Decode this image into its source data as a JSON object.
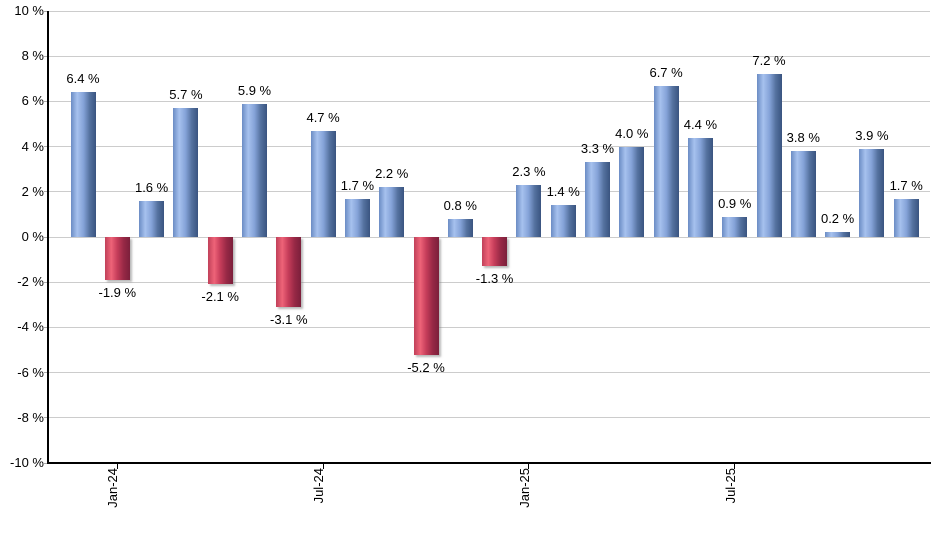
{
  "chart": {
    "background": "#ffffff",
    "grid_color": "#cccccc",
    "axis_color": "#000000",
    "label_color": "#000000",
    "positive_gradient": [
      "#6b8cc4",
      "#a6c1ee",
      "#85a3d8",
      "#54719f",
      "#3a5480"
    ],
    "negative_gradient": [
      "#c04059",
      "#ee6378",
      "#c43c59",
      "#962845",
      "#7c1f3b"
    ]
  },
  "chart_data": {
    "type": "bar",
    "title": "",
    "xlabel": "",
    "ylabel": "",
    "ylim": [
      -10,
      10
    ],
    "grid": "horizontal",
    "legend": "none",
    "value_label_format": "x.x %",
    "y_ticks": [
      {
        "value": 10,
        "label": "10 %"
      },
      {
        "value": 8,
        "label": "8 %"
      },
      {
        "value": 6,
        "label": "6 %"
      },
      {
        "value": 4,
        "label": "4 %"
      },
      {
        "value": 2,
        "label": "2 %"
      },
      {
        "value": 0,
        "label": "0 %"
      },
      {
        "value": -2,
        "label": "-2 %"
      },
      {
        "value": -4,
        "label": "-4 %"
      },
      {
        "value": -6,
        "label": "-6 %"
      },
      {
        "value": -8,
        "label": "-8 %"
      },
      {
        "value": -10,
        "label": "-10 %"
      }
    ],
    "x_ticks": [
      {
        "index": 1,
        "label": "Jan-24"
      },
      {
        "index": 7,
        "label": "Jul-24"
      },
      {
        "index": 13,
        "label": "Jan-25"
      },
      {
        "index": 19,
        "label": "Jul-25"
      }
    ],
    "bars": [
      {
        "value": 6.4,
        "label": "6.4 %"
      },
      {
        "value": -1.9,
        "label": "-1.9 %"
      },
      {
        "value": 1.6,
        "label": "1.6 %"
      },
      {
        "value": 5.7,
        "label": "5.7 %"
      },
      {
        "value": -2.1,
        "label": "-2.1 %"
      },
      {
        "value": 5.9,
        "label": "5.9 %"
      },
      {
        "value": -3.1,
        "label": "-3.1 %"
      },
      {
        "value": 4.7,
        "label": "4.7 %"
      },
      {
        "value": 1.7,
        "label": "1.7 %"
      },
      {
        "value": 2.2,
        "label": "2.2 %"
      },
      {
        "value": -5.2,
        "label": "-5.2 %"
      },
      {
        "value": 0.8,
        "label": "0.8 %"
      },
      {
        "value": -1.3,
        "label": "-1.3 %"
      },
      {
        "value": 2.3,
        "label": "2.3 %"
      },
      {
        "value": 1.4,
        "label": "1.4 %"
      },
      {
        "value": 3.3,
        "label": "3.3 %"
      },
      {
        "value": 4.0,
        "label": "4.0 %"
      },
      {
        "value": 6.7,
        "label": "6.7 %"
      },
      {
        "value": 4.4,
        "label": "4.4 %"
      },
      {
        "value": 0.9,
        "label": "0.9 %"
      },
      {
        "value": 7.2,
        "label": "7.2 %"
      },
      {
        "value": 3.8,
        "label": "3.8 %"
      },
      {
        "value": 0.2,
        "label": "0.2 %"
      },
      {
        "value": 3.9,
        "label": "3.9 %"
      },
      {
        "value": 1.7,
        "label": "1.7 %"
      }
    ]
  }
}
